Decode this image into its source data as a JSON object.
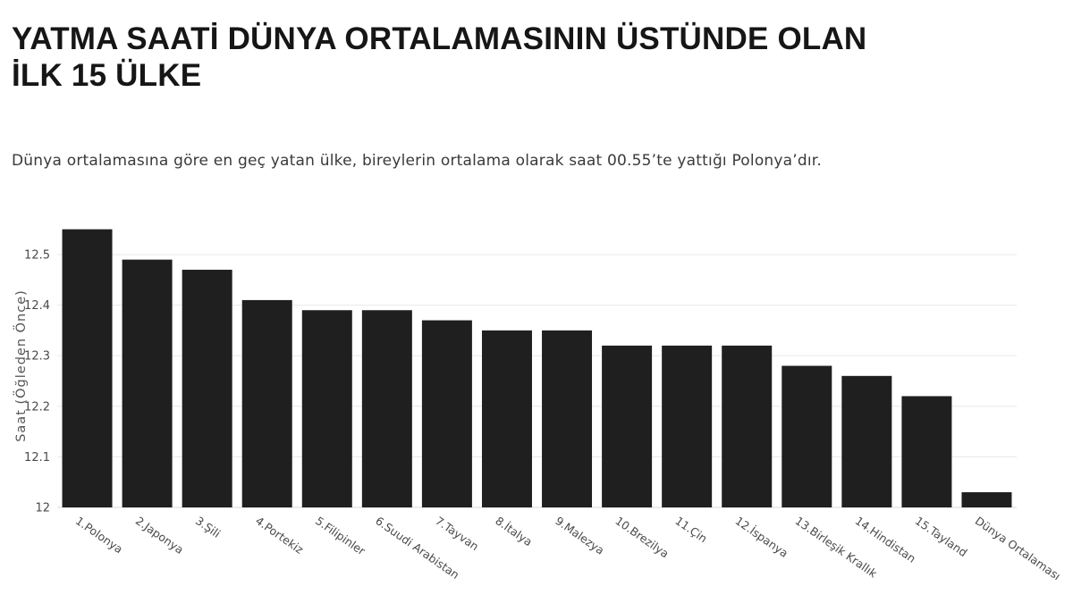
{
  "page": {
    "title_line1": "YATMA SAATİ DÜNYA ORTALAMASININ ÜSTÜNDE OLAN",
    "title_line2": "İLK 15 ÜLKE",
    "subtitle": "Dünya ortalamasına göre en geç yatan ülke, bireylerin ortalama olarak saat 00.55’te yattığı Polonya’dır."
  },
  "colors": {
    "bar": "#1f1f1f",
    "grid": "#ececec",
    "baseline": "#e0e0e0",
    "tick_text": "#4a4a4a",
    "axis_title_text": "#555555",
    "title_text": "#161616",
    "subtitle_text": "#3a3a3a",
    "background": "#ffffff"
  },
  "chart_data": {
    "type": "bar",
    "title": "",
    "categories": [
      "1.Polonya",
      "2.Japonya",
      "3.Şili",
      "4.Portekiz",
      "5.Filipinler",
      "6.Suudi Arabistan",
      "7.Tayvan",
      "8.İtalya",
      "9.Malezya",
      "10.Brezilya",
      "11.Çin",
      "12.İspanya",
      "13.Birleşik Krallık",
      "14.Hindistan",
      "15.Tayland",
      "Dünya Ortalaması"
    ],
    "values": [
      12.55,
      12.49,
      12.47,
      12.41,
      12.39,
      12.39,
      12.37,
      12.35,
      12.35,
      12.32,
      12.32,
      12.32,
      12.28,
      12.26,
      12.22,
      12.03
    ],
    "xlabel": "",
    "ylabel": "Saat (Öğleden Önce)",
    "ylim": [
      12,
      12.56
    ],
    "yticks": [
      12,
      12.1,
      12.2,
      12.3,
      12.4,
      12.5
    ],
    "ytick_labels": [
      "12",
      "12.1",
      "12.2",
      "12.3",
      "12.4",
      "12.5"
    ],
    "xtick_angle": 35,
    "grid": true,
    "legend_position": "none",
    "bar_color": "#1f1f1f"
  }
}
